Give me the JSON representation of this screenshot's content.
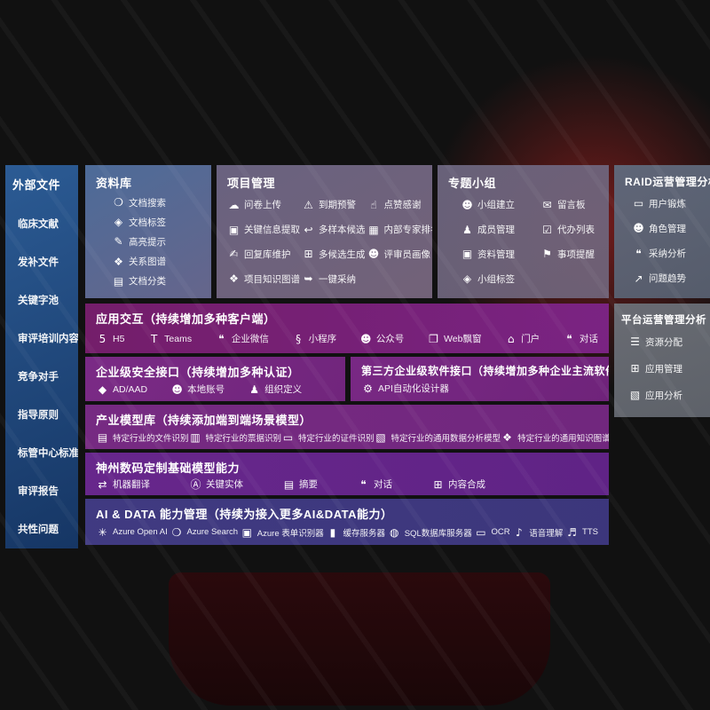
{
  "colors": {
    "background_red": "#b80f15",
    "sidebar_blue": "#2d5f9b",
    "band_purple": "#7c2488",
    "band_indigo": "#423c86",
    "box_gray_blue": "#5f6a7d",
    "text": "#ffffff"
  },
  "sidebar": {
    "title": "外部文件",
    "items": [
      "临床文献",
      "发补文件",
      "关键字池",
      "审评培训内容",
      "竞争对手",
      "指导原则",
      "标管中心标准",
      "审评报告",
      "共性问题"
    ]
  },
  "library": {
    "title": "资料库",
    "items": [
      {
        "icon": "doc-search-icon",
        "label": "文档搜索"
      },
      {
        "icon": "doc-tag-icon",
        "label": "文档标签"
      },
      {
        "icon": "highlight-icon",
        "label": "高亮提示"
      },
      {
        "icon": "relation-graph-icon",
        "label": "关系图谱"
      },
      {
        "icon": "doc-classify-icon",
        "label": "文档分类"
      }
    ]
  },
  "project": {
    "title": "项目管理",
    "items": [
      {
        "icon": "upload-cloud-icon",
        "label": "问卷上传"
      },
      {
        "icon": "alarm-icon",
        "label": "到期预警"
      },
      {
        "icon": "thumbs-up-icon",
        "label": "点赞感谢"
      },
      {
        "icon": "doc-extract-icon",
        "label": "关键信息提取"
      },
      {
        "icon": "reply-arrow-icon",
        "label": "多样本候选"
      },
      {
        "icon": "ranking-icon",
        "label": "内部专家排名"
      },
      {
        "icon": "pen-icon",
        "label": "回复库维护"
      },
      {
        "icon": "grid-generate-icon",
        "label": "多候选生成"
      },
      {
        "icon": "person-icon",
        "label": "评审员画像"
      },
      {
        "icon": "knowledge-graph-icon",
        "label": "项目知识图谱"
      },
      {
        "icon": "adopt-arrow-icon",
        "label": "一键采纳"
      }
    ]
  },
  "groups": {
    "title": "专题小组",
    "items": [
      {
        "icon": "group-people-icon",
        "label": "小组建立"
      },
      {
        "icon": "message-board-icon",
        "label": "留言板"
      },
      {
        "icon": "member-icon",
        "label": "成员管理"
      },
      {
        "icon": "todo-list-icon",
        "label": "代办列表"
      },
      {
        "icon": "material-icon",
        "label": "资料管理"
      },
      {
        "icon": "bell-icon",
        "label": "事项提醒"
      },
      {
        "icon": "tag-icon",
        "label": "小组标签"
      }
    ]
  },
  "raid": {
    "title": "RAID运营管理分析",
    "items": [
      {
        "icon": "user-card-icon",
        "label": "用户锻炼"
      },
      {
        "icon": "role-people-icon",
        "label": "角色管理"
      },
      {
        "icon": "qa-chat-icon",
        "label": "采纳分析"
      },
      {
        "icon": "trend-chart-icon",
        "label": "问题趋势"
      }
    ]
  },
  "platform": {
    "title": "平台运营管理分析",
    "items": [
      {
        "icon": "resource-list-icon",
        "label": "资源分配"
      },
      {
        "icon": "app-grid-icon",
        "label": "应用管理"
      },
      {
        "icon": "app-analysis-icon",
        "label": "应用分析"
      }
    ]
  },
  "interaction": {
    "title": "应用交互（持续增加多种客户端）",
    "items": [
      {
        "icon": "h5-icon",
        "label": "H5"
      },
      {
        "icon": "teams-icon",
        "label": "Teams"
      },
      {
        "icon": "wechat-work-icon",
        "label": "企业微信"
      },
      {
        "icon": "miniprogram-icon",
        "label": "小程序"
      },
      {
        "icon": "official-account-icon",
        "label": "公众号"
      },
      {
        "icon": "web-popup-icon",
        "label": "Web飘窗"
      },
      {
        "icon": "portal-icon",
        "label": "门户"
      },
      {
        "icon": "dialog-icon",
        "label": "对话"
      }
    ]
  },
  "security": {
    "title": "企业级安全接口（持续增加多种认证）",
    "items": [
      {
        "icon": "ad-diamond-icon",
        "label": "AD/AAD"
      },
      {
        "icon": "local-account-icon",
        "label": "本地账号"
      },
      {
        "icon": "org-define-icon",
        "label": "组织定义"
      }
    ]
  },
  "third_party": {
    "title": "第三方企业级软件接口（持续增加多种企业主流软件接口）",
    "items": [
      {
        "icon": "api-gear-icon",
        "label": "API自动化设计器"
      }
    ]
  },
  "models": {
    "title": "产业模型库（持续添加端到端场景模型）",
    "items": [
      {
        "icon": "file-recognition-icon",
        "label": "特定行业的文件识别"
      },
      {
        "icon": "invoice-recognition-icon",
        "label": "特定行业的票据识别"
      },
      {
        "icon": "id-recognition-icon",
        "label": "特定行业的证件识别"
      },
      {
        "icon": "data-analysis-model-icon",
        "label": "特定行业的通用数据分析模型"
      },
      {
        "icon": "knowledge-graph-model-icon",
        "label": "特定行业的通用知识图谱模型"
      }
    ]
  },
  "base_models": {
    "title": "神州数码定制基础模型能力",
    "items": [
      {
        "icon": "translate-icon",
        "label": "机器翻译"
      },
      {
        "icon": "entity-icon",
        "label": "关键实体"
      },
      {
        "icon": "summary-icon",
        "label": "摘要"
      },
      {
        "icon": "chat-icon",
        "label": "对话"
      },
      {
        "icon": "compose-icon",
        "label": "内容合成"
      }
    ]
  },
  "ai_data": {
    "title": "AI & DATA 能力管理（持续为接入更多AI&DATA能力）",
    "items": [
      {
        "icon": "openai-icon",
        "label": "Azure Open AI"
      },
      {
        "icon": "azure-search-icon",
        "label": "Azure Search"
      },
      {
        "icon": "form-recognizer-icon",
        "label": "Azure 表单识别器"
      },
      {
        "icon": "cache-server-icon",
        "label": "缓存服务器"
      },
      {
        "icon": "sql-db-icon",
        "label": "SQL数据库服务器"
      },
      {
        "icon": "ocr-icon",
        "label": "OCR"
      },
      {
        "icon": "speech-icon",
        "label": "语音理解"
      },
      {
        "icon": "tts-icon",
        "label": "TTS"
      }
    ]
  }
}
